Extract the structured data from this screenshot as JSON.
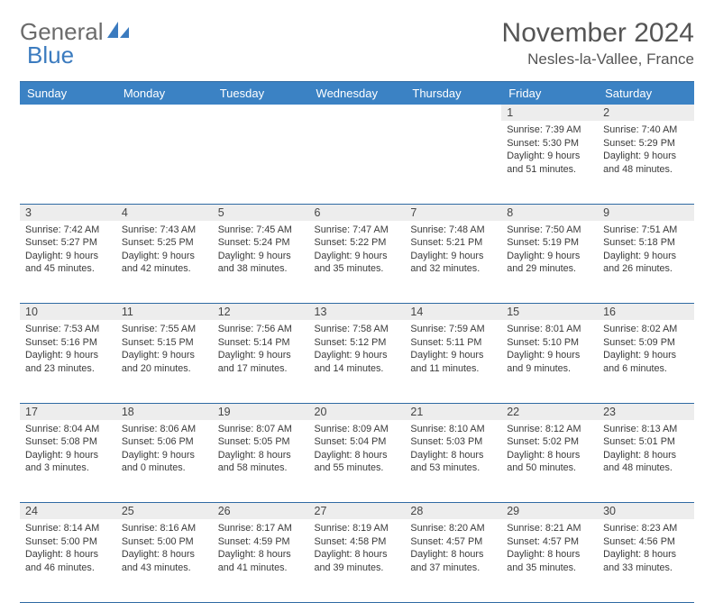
{
  "brand": {
    "part1": "General",
    "part2": "Blue"
  },
  "title": "November 2024",
  "location": "Nesles-la-Vallee, France",
  "day_headers": [
    "Sunday",
    "Monday",
    "Tuesday",
    "Wednesday",
    "Thursday",
    "Friday",
    "Saturday"
  ],
  "colors": {
    "header_bg": "#3b82c4",
    "header_text": "#ffffff",
    "daynum_bg": "#ededed",
    "cell_border": "#2f6aa3",
    "logo_gray": "#6b6b6b",
    "logo_blue": "#3b7bbf",
    "body_text": "#3a3a3a"
  },
  "weeks": [
    {
      "nums": [
        "",
        "",
        "",
        "",
        "",
        "1",
        "2"
      ],
      "cells": [
        null,
        null,
        null,
        null,
        null,
        {
          "sunrise": "7:39 AM",
          "sunset": "5:30 PM",
          "daylight": "9 hours and 51 minutes."
        },
        {
          "sunrise": "7:40 AM",
          "sunset": "5:29 PM",
          "daylight": "9 hours and 48 minutes."
        }
      ]
    },
    {
      "nums": [
        "3",
        "4",
        "5",
        "6",
        "7",
        "8",
        "9"
      ],
      "cells": [
        {
          "sunrise": "7:42 AM",
          "sunset": "5:27 PM",
          "daylight": "9 hours and 45 minutes."
        },
        {
          "sunrise": "7:43 AM",
          "sunset": "5:25 PM",
          "daylight": "9 hours and 42 minutes."
        },
        {
          "sunrise": "7:45 AM",
          "sunset": "5:24 PM",
          "daylight": "9 hours and 38 minutes."
        },
        {
          "sunrise": "7:47 AM",
          "sunset": "5:22 PM",
          "daylight": "9 hours and 35 minutes."
        },
        {
          "sunrise": "7:48 AM",
          "sunset": "5:21 PM",
          "daylight": "9 hours and 32 minutes."
        },
        {
          "sunrise": "7:50 AM",
          "sunset": "5:19 PM",
          "daylight": "9 hours and 29 minutes."
        },
        {
          "sunrise": "7:51 AM",
          "sunset": "5:18 PM",
          "daylight": "9 hours and 26 minutes."
        }
      ]
    },
    {
      "nums": [
        "10",
        "11",
        "12",
        "13",
        "14",
        "15",
        "16"
      ],
      "cells": [
        {
          "sunrise": "7:53 AM",
          "sunset": "5:16 PM",
          "daylight": "9 hours and 23 minutes."
        },
        {
          "sunrise": "7:55 AM",
          "sunset": "5:15 PM",
          "daylight": "9 hours and 20 minutes."
        },
        {
          "sunrise": "7:56 AM",
          "sunset": "5:14 PM",
          "daylight": "9 hours and 17 minutes."
        },
        {
          "sunrise": "7:58 AM",
          "sunset": "5:12 PM",
          "daylight": "9 hours and 14 minutes."
        },
        {
          "sunrise": "7:59 AM",
          "sunset": "5:11 PM",
          "daylight": "9 hours and 11 minutes."
        },
        {
          "sunrise": "8:01 AM",
          "sunset": "5:10 PM",
          "daylight": "9 hours and 9 minutes."
        },
        {
          "sunrise": "8:02 AM",
          "sunset": "5:09 PM",
          "daylight": "9 hours and 6 minutes."
        }
      ]
    },
    {
      "nums": [
        "17",
        "18",
        "19",
        "20",
        "21",
        "22",
        "23"
      ],
      "cells": [
        {
          "sunrise": "8:04 AM",
          "sunset": "5:08 PM",
          "daylight": "9 hours and 3 minutes."
        },
        {
          "sunrise": "8:06 AM",
          "sunset": "5:06 PM",
          "daylight": "9 hours and 0 minutes."
        },
        {
          "sunrise": "8:07 AM",
          "sunset": "5:05 PM",
          "daylight": "8 hours and 58 minutes."
        },
        {
          "sunrise": "8:09 AM",
          "sunset": "5:04 PM",
          "daylight": "8 hours and 55 minutes."
        },
        {
          "sunrise": "8:10 AM",
          "sunset": "5:03 PM",
          "daylight": "8 hours and 53 minutes."
        },
        {
          "sunrise": "8:12 AM",
          "sunset": "5:02 PM",
          "daylight": "8 hours and 50 minutes."
        },
        {
          "sunrise": "8:13 AM",
          "sunset": "5:01 PM",
          "daylight": "8 hours and 48 minutes."
        }
      ]
    },
    {
      "nums": [
        "24",
        "25",
        "26",
        "27",
        "28",
        "29",
        "30"
      ],
      "cells": [
        {
          "sunrise": "8:14 AM",
          "sunset": "5:00 PM",
          "daylight": "8 hours and 46 minutes."
        },
        {
          "sunrise": "8:16 AM",
          "sunset": "5:00 PM",
          "daylight": "8 hours and 43 minutes."
        },
        {
          "sunrise": "8:17 AM",
          "sunset": "4:59 PM",
          "daylight": "8 hours and 41 minutes."
        },
        {
          "sunrise": "8:19 AM",
          "sunset": "4:58 PM",
          "daylight": "8 hours and 39 minutes."
        },
        {
          "sunrise": "8:20 AM",
          "sunset": "4:57 PM",
          "daylight": "8 hours and 37 minutes."
        },
        {
          "sunrise": "8:21 AM",
          "sunset": "4:57 PM",
          "daylight": "8 hours and 35 minutes."
        },
        {
          "sunrise": "8:23 AM",
          "sunset": "4:56 PM",
          "daylight": "8 hours and 33 minutes."
        }
      ]
    }
  ],
  "labels": {
    "sunrise": "Sunrise: ",
    "sunset": "Sunset: ",
    "daylight": "Daylight: "
  }
}
